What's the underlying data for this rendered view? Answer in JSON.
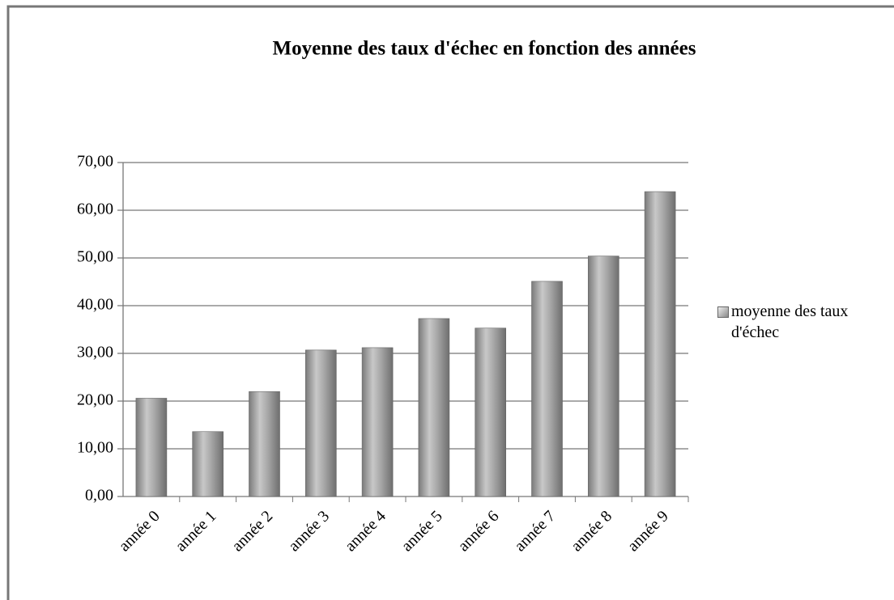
{
  "chart_data": {
    "type": "bar",
    "title": "Moyenne des taux d'échec en fonction des années",
    "categories": [
      "année 0",
      "année 1",
      "année 2",
      "année 3",
      "année 4",
      "année 5",
      "année 6",
      "année 7",
      "année 8",
      "année 9"
    ],
    "series": [
      {
        "name": "moyenne des taux d'échec",
        "color": "#9a9a9a",
        "values": [
          20.6,
          13.6,
          22.0,
          30.7,
          31.2,
          37.3,
          35.3,
          45.1,
          50.4,
          63.9
        ]
      }
    ],
    "ylim": [
      0,
      70
    ],
    "yticks": [
      {
        "value": 0,
        "label": "0,00"
      },
      {
        "value": 10,
        "label": "10,00"
      },
      {
        "value": 20,
        "label": "20,00"
      },
      {
        "value": 30,
        "label": "30,00"
      },
      {
        "value": 40,
        "label": "40,00"
      },
      {
        "value": 50,
        "label": "50,00"
      },
      {
        "value": 60,
        "label": "60,00"
      },
      {
        "value": 70,
        "label": "70,00"
      }
    ],
    "grid": true,
    "legend": "right"
  }
}
